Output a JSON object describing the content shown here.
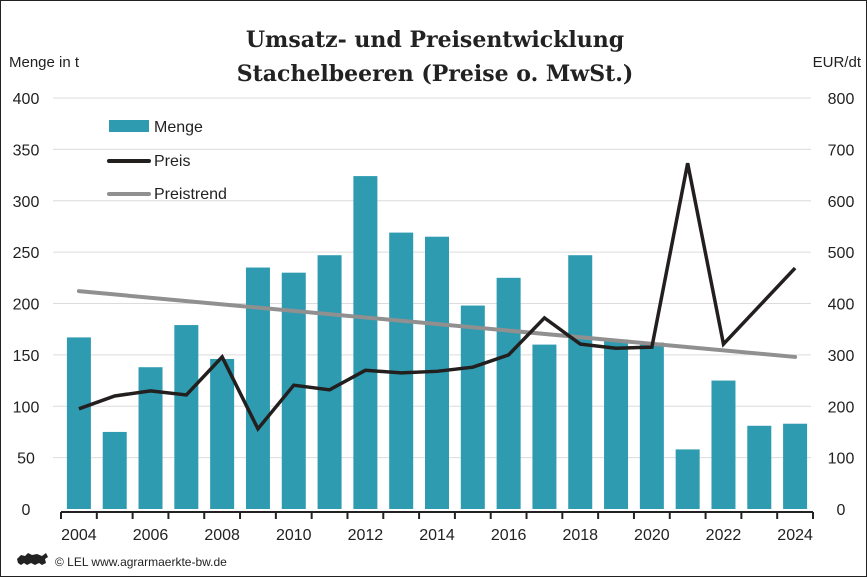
{
  "chart_data": {
    "type": "bar",
    "title": "Umsatz- und Preisentwicklung",
    "subtitle": "Stachelbeeren (Preise o. MwSt.)",
    "ylabel_left": "Menge in t",
    "ylabel_right": "EUR/dt",
    "ylim_left": [
      0,
      400
    ],
    "ylim_right": [
      0,
      800
    ],
    "yticks_left": [
      "0",
      "50",
      "100",
      "150",
      "200",
      "250",
      "300",
      "350",
      "400"
    ],
    "yticks_right": [
      "0",
      "100",
      "200",
      "300",
      "400",
      "500",
      "600",
      "700",
      "800"
    ],
    "grid": true,
    "legend_position": "top-left",
    "categories": [
      "2004",
      "2005",
      "2006",
      "2007",
      "2008",
      "2009",
      "2010",
      "2011",
      "2012",
      "2013",
      "2014",
      "2015",
      "2016",
      "2017",
      "2018",
      "2019",
      "2020",
      "2021",
      "2022",
      "2023",
      "2024"
    ],
    "xtick_labels": [
      "2004",
      "2006",
      "2008",
      "2010",
      "2012",
      "2014",
      "2016",
      "2018",
      "2020",
      "2022",
      "2024"
    ],
    "series": [
      {
        "name": "Menge",
        "type": "bar",
        "axis": "left",
        "color": "#2e9bb0",
        "values": [
          167,
          75,
          138,
          179,
          146,
          235,
          230,
          247,
          324,
          269,
          265,
          198,
          225,
          160,
          247,
          165,
          162,
          58,
          125,
          81,
          83
        ]
      },
      {
        "name": "Preis",
        "type": "line",
        "axis": "right",
        "color": "#231f1f",
        "values": [
          195,
          220,
          230,
          222,
          296,
          156,
          241,
          232,
          270,
          265,
          268,
          276,
          300,
          372,
          321,
          313,
          315,
          673,
          321,
          395,
          469
        ]
      },
      {
        "name": "Preistrend",
        "type": "line",
        "axis": "right",
        "color": "#909090",
        "values": [
          424,
          296
        ],
        "x": [
          "2004",
          "2024"
        ]
      }
    ]
  },
  "footer": {
    "credit": "© LEL www.agrarmaerkte-bw.de",
    "logo_icon": "lion-icon"
  }
}
